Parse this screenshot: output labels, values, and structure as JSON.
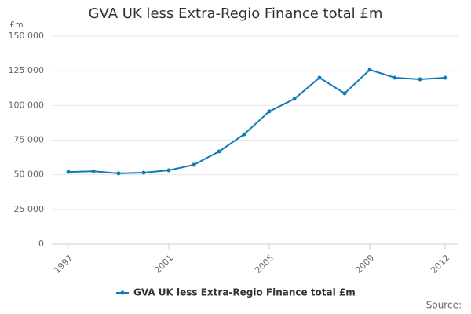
{
  "chart_data": {
    "type": "line",
    "title": "GVA UK less Extra-Regio Finance total £m",
    "y_label": "£m",
    "source": "Source:",
    "x": [
      1997,
      1998,
      1999,
      2000,
      2001,
      2002,
      2003,
      2004,
      2005,
      2006,
      2007,
      2008,
      2009,
      2010,
      2011,
      2012
    ],
    "series": [
      {
        "name": "GVA UK less Extra-Regio Finance total £m",
        "color": "#0f7bb8",
        "values": [
          52000,
          52500,
          51000,
          51500,
          53200,
          57200,
          66800,
          79200,
          95700,
          104700,
          120000,
          108700,
          125700,
          120000,
          118900,
          120000
        ]
      }
    ],
    "xlim": [
      1997,
      2012
    ],
    "xticks": [
      1997,
      2001,
      2005,
      2009,
      2012
    ],
    "ylim": [
      0,
      150000
    ],
    "yticks": [
      0,
      {
        "value": 25000,
        "label": "25 000"
      },
      {
        "value": 50000,
        "label": "50 000"
      },
      {
        "value": 75000,
        "label": "75 000"
      },
      {
        "value": 100000,
        "label": "100 000"
      },
      {
        "value": 125000,
        "label": "125 000"
      },
      {
        "value": 150000,
        "label": "150 000"
      }
    ],
    "grid": true,
    "legend": "bottom"
  }
}
